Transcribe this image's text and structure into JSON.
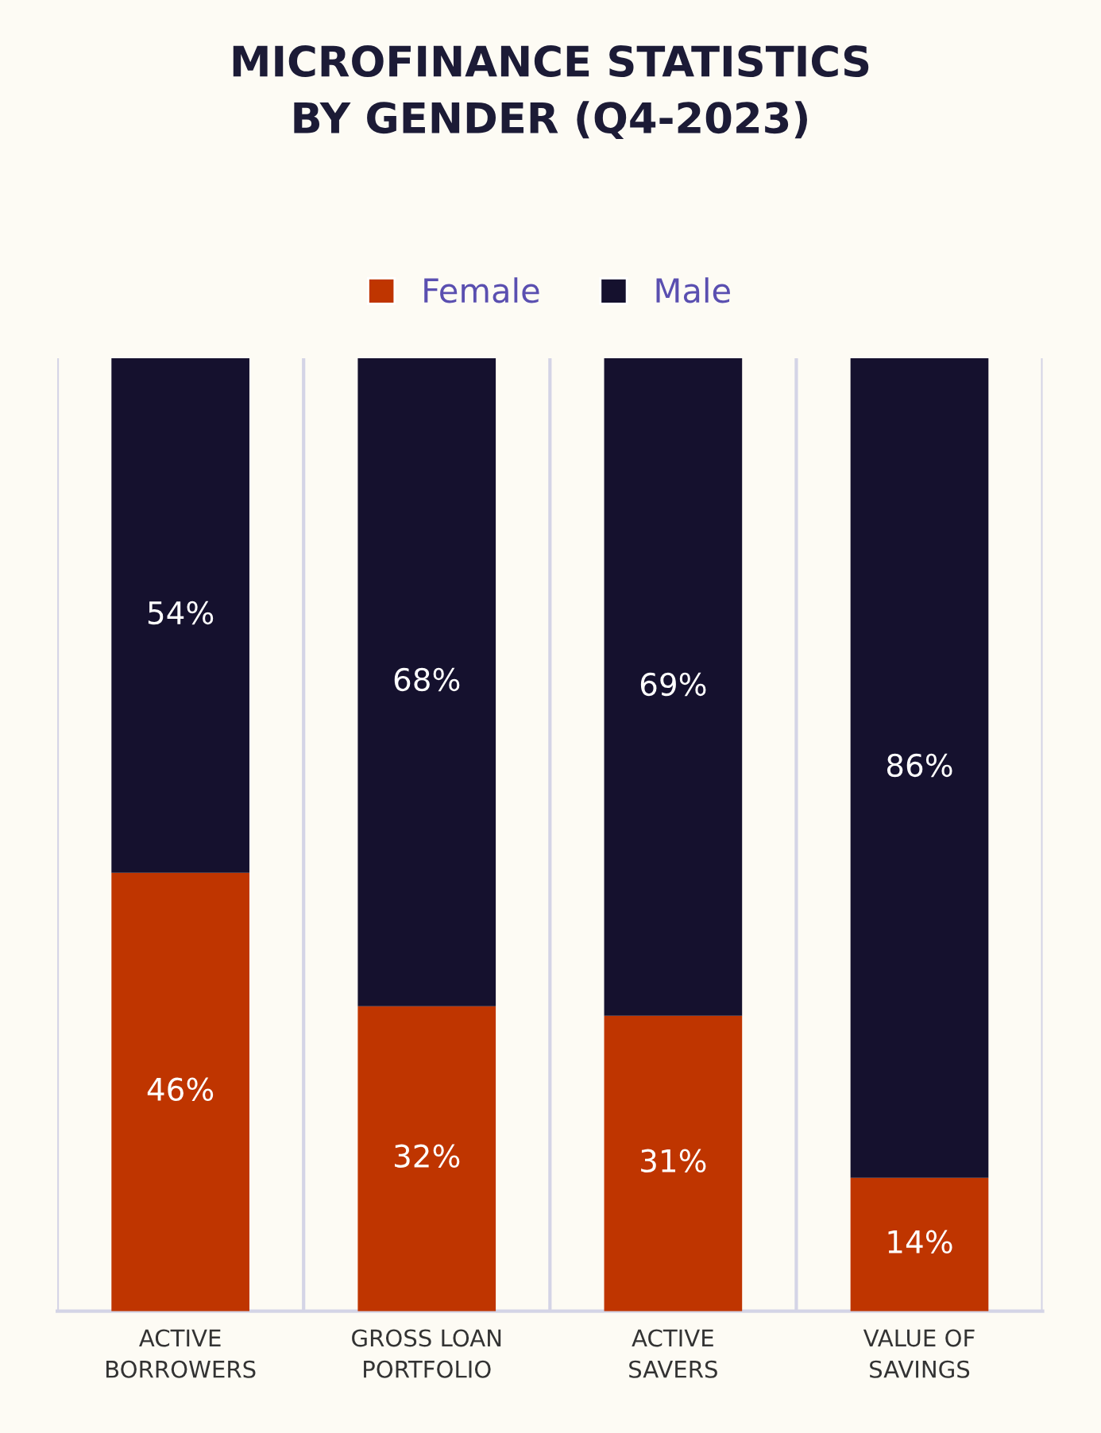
{
  "chart_data": {
    "type": "bar",
    "title": "MICROFINANCE STATISTICS\nBY GENDER (Q4-2023)",
    "categories": [
      "ACTIVE\nBORROWERS",
      "GROSS LOAN\nPORTFOLIO",
      "ACTIVE\nSAVERS",
      "VALUE OF\nSAVINGS"
    ],
    "series": [
      {
        "name": "Female",
        "color": "#bf3500",
        "values": [
          46,
          32,
          31,
          14
        ],
        "value_labels": [
          "46%",
          "32%",
          "31%",
          "14%"
        ]
      },
      {
        "name": "Male",
        "color": "#15112e",
        "values": [
          54,
          68,
          69,
          86
        ],
        "value_labels": [
          "54%",
          "68%",
          "69%",
          "86%"
        ]
      }
    ],
    "stacked": true,
    "legend": "top",
    "grid": "x"
  }
}
